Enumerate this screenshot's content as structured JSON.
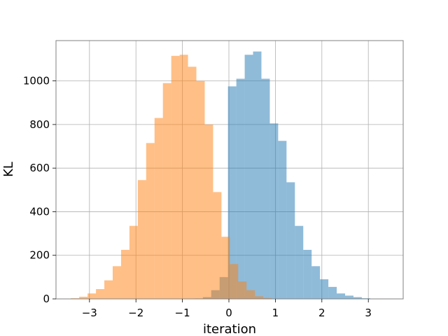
{
  "chart_data": {
    "type": "bar",
    "title": "",
    "xlabel": "iteration",
    "ylabel": "KL",
    "xlim": [
      -3.72,
      3.75
    ],
    "ylim": [
      0,
      1185
    ],
    "xticks": [
      -3,
      -2,
      -1,
      0,
      1,
      2,
      3
    ],
    "xtick_labels": [
      "−3",
      "−2",
      "−1",
      "0",
      "1",
      "2",
      "3"
    ],
    "yticks": [
      0,
      200,
      400,
      600,
      800,
      1000
    ],
    "ytick_labels": [
      "0",
      "200",
      "400",
      "600",
      "800",
      "1000"
    ],
    "grid": true,
    "legend": "none",
    "bin_width": 0.18,
    "series": [
      {
        "color": "#1f77b4",
        "alpha": 0.5,
        "bins": [
          {
            "x0": -0.74,
            "value": 2
          },
          {
            "x0": -0.56,
            "value": 8
          },
          {
            "x0": -0.38,
            "value": 40
          },
          {
            "x0": -0.2,
            "value": 100
          },
          {
            "x0": -0.02,
            "value": 975
          },
          {
            "x0": 0.16,
            "value": 1010
          },
          {
            "x0": 0.34,
            "value": 1120
          },
          {
            "x0": 0.52,
            "value": 1135
          },
          {
            "x0": 0.7,
            "value": 1010
          },
          {
            "x0": 0.88,
            "value": 805
          },
          {
            "x0": 1.06,
            "value": 725
          },
          {
            "x0": 1.24,
            "value": 535
          },
          {
            "x0": 1.42,
            "value": 335
          },
          {
            "x0": 1.6,
            "value": 225
          },
          {
            "x0": 1.78,
            "value": 150
          },
          {
            "x0": 1.96,
            "value": 90
          },
          {
            "x0": 2.14,
            "value": 55
          },
          {
            "x0": 2.32,
            "value": 25
          },
          {
            "x0": 2.5,
            "value": 15
          },
          {
            "x0": 2.68,
            "value": 8
          },
          {
            "x0": 2.86,
            "value": 3
          }
        ]
      },
      {
        "color": "#ff7f0e",
        "alpha": 0.5,
        "bins": [
          {
            "x0": -3.4,
            "value": 3
          },
          {
            "x0": -3.22,
            "value": 10
          },
          {
            "x0": -3.04,
            "value": 25
          },
          {
            "x0": -2.86,
            "value": 45
          },
          {
            "x0": -2.68,
            "value": 85
          },
          {
            "x0": -2.5,
            "value": 150
          },
          {
            "x0": -2.32,
            "value": 225
          },
          {
            "x0": -2.14,
            "value": 335
          },
          {
            "x0": -1.96,
            "value": 545
          },
          {
            "x0": -1.78,
            "value": 715
          },
          {
            "x0": -1.6,
            "value": 830
          },
          {
            "x0": -1.42,
            "value": 990
          },
          {
            "x0": -1.24,
            "value": 1115
          },
          {
            "x0": -1.06,
            "value": 1120
          },
          {
            "x0": -0.88,
            "value": 1065
          },
          {
            "x0": -0.7,
            "value": 1000
          },
          {
            "x0": -0.52,
            "value": 800
          },
          {
            "x0": -0.34,
            "value": 490
          },
          {
            "x0": -0.16,
            "value": 285
          },
          {
            "x0": 0.02,
            "value": 160
          },
          {
            "x0": 0.2,
            "value": 80
          },
          {
            "x0": 0.38,
            "value": 40
          },
          {
            "x0": 0.56,
            "value": 12
          },
          {
            "x0": 0.74,
            "value": 4
          }
        ]
      }
    ]
  }
}
